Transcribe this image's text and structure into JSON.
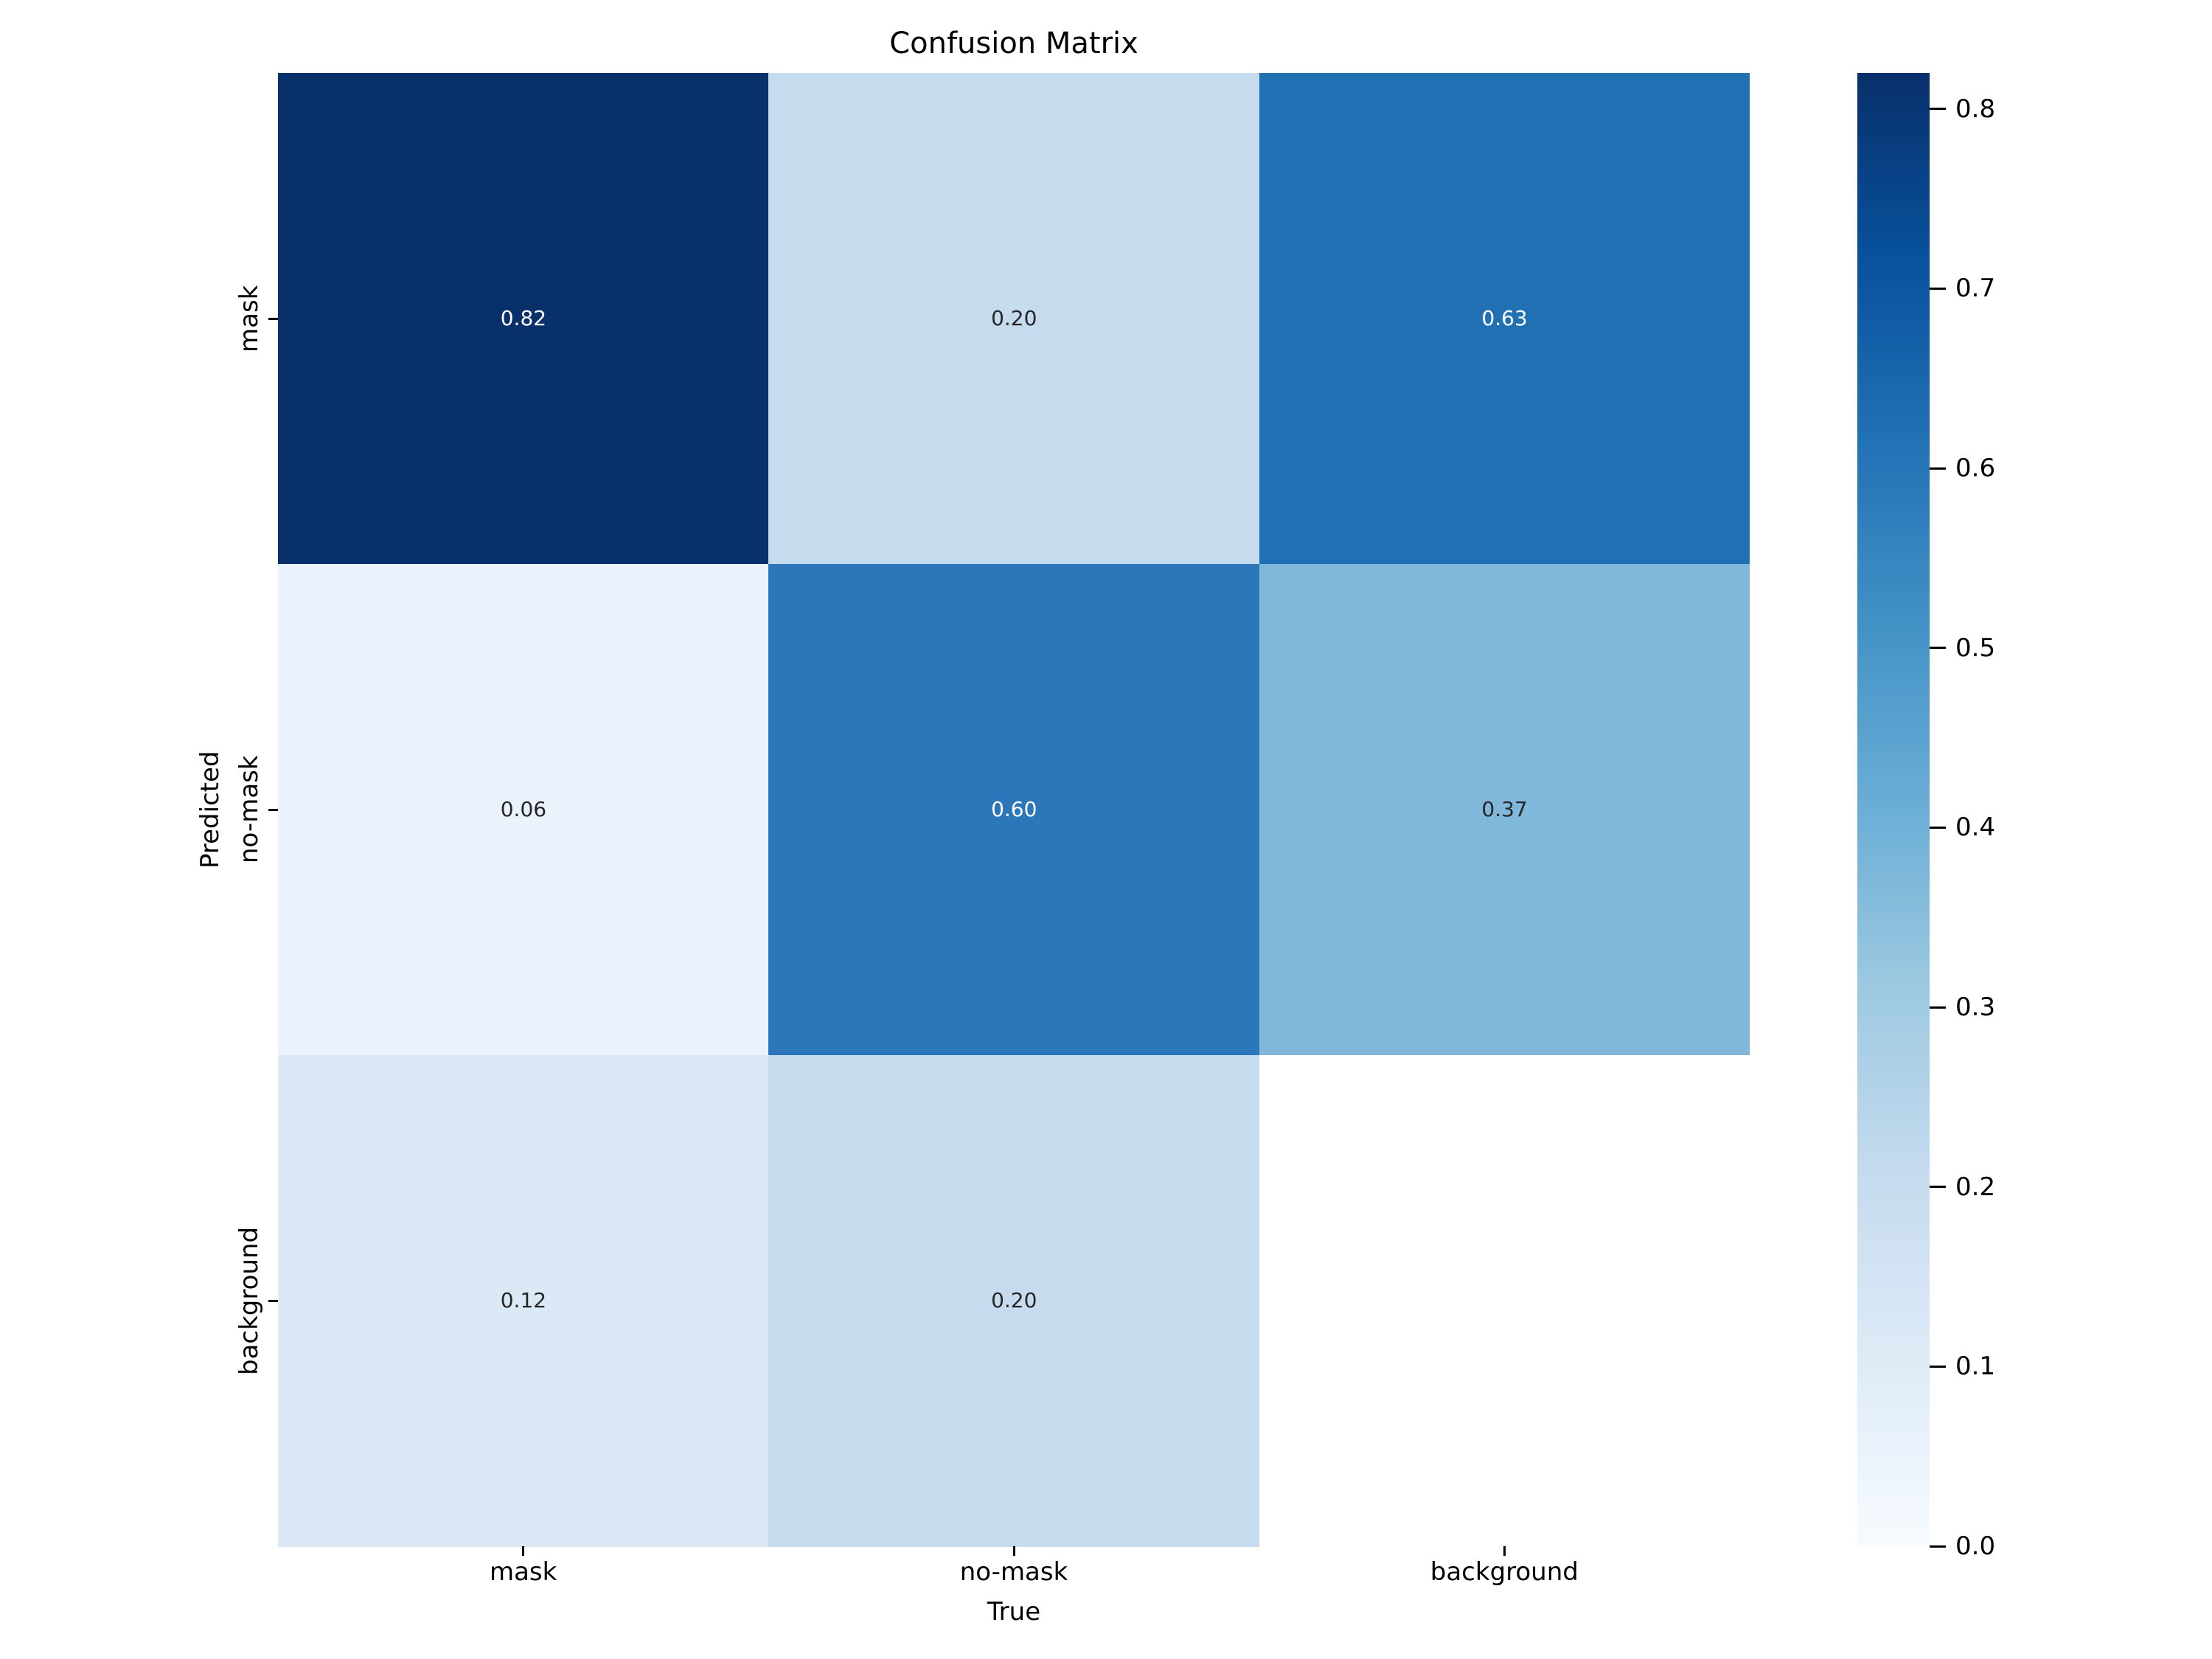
{
  "chart_data": {
    "type": "heatmap",
    "title": "Confusion Matrix",
    "xlabel": "True",
    "ylabel": "Predicted",
    "x_categories": [
      "mask",
      "no-mask",
      "background"
    ],
    "y_categories": [
      "mask",
      "no-mask",
      "background"
    ],
    "values": [
      [
        0.82,
        0.2,
        0.63
      ],
      [
        0.06,
        0.6,
        0.37
      ],
      [
        0.12,
        0.2,
        null
      ]
    ],
    "value_labels": [
      [
        "0.82",
        "0.20",
        "0.63"
      ],
      [
        "0.06",
        "0.60",
        "0.37"
      ],
      [
        "0.12",
        "0.20",
        ""
      ]
    ],
    "cell_colors": [
      [
        "#08306b",
        "#c6dbee",
        "#2170b4"
      ],
      [
        "#eaf2fb",
        "#2b77b9",
        "#7fb8da"
      ],
      [
        "#dbe8f5",
        "#c6dbee",
        "#ffffff"
      ]
    ],
    "colormap": "Blues",
    "vmin": 0.0,
    "vmax": 0.82,
    "colorbar_tick_labels": [
      "0.8",
      "0.7",
      "0.6",
      "0.5",
      "0.4",
      "0.3",
      "0.2",
      "0.1",
      "0.0"
    ],
    "colorbar_tick_values": [
      0.8,
      0.7,
      0.6,
      0.5,
      0.4,
      0.3,
      0.2,
      0.1,
      0.0
    ],
    "colorbar_gradient_top_to_bottom": [
      "#08306b",
      "#08519c",
      "#2171b5",
      "#4292c6",
      "#6baed6",
      "#9ecae1",
      "#c6dbef",
      "#deebf7",
      "#f7fbff"
    ],
    "annot_color_light": "#ffffff",
    "annot_color_dark": "#262626",
    "legend_position": "right-colorbar",
    "grid": false
  }
}
